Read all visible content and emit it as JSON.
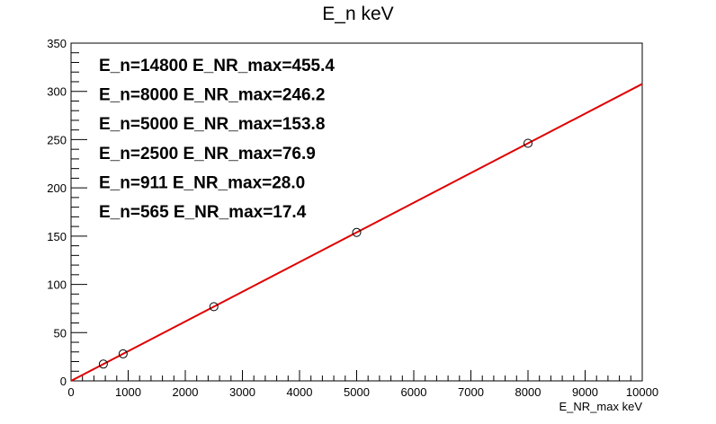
{
  "chart_data": {
    "type": "scatter",
    "title": "E_n keV",
    "xlabel": "E_NR_max keV",
    "ylabel": "",
    "xlim": [
      0,
      10000
    ],
    "ylim": [
      0,
      350
    ],
    "xticks": [
      0,
      1000,
      2000,
      3000,
      4000,
      5000,
      6000,
      7000,
      8000,
      9000,
      10000
    ],
    "yticks": [
      0,
      50,
      100,
      150,
      200,
      250,
      300,
      350
    ],
    "grid": false,
    "points": [
      {
        "x": 565,
        "y": 17.4
      },
      {
        "x": 911,
        "y": 28.0
      },
      {
        "x": 2500,
        "y": 76.9
      },
      {
        "x": 5000,
        "y": 153.8
      },
      {
        "x": 8000,
        "y": 246.2
      }
    ],
    "fit_line": {
      "color": "#e00000",
      "x0": 0,
      "y0": 0,
      "x1": 10000,
      "y1": 307.7
    },
    "marker_color": "#000000",
    "annotations": [
      "E_n=14800  E_NR_max=455.4",
      "E_n=8000  E_NR_max=246.2",
      "E_n=5000  E_NR_max=153.8",
      "E_n=2500  E_NR_max=76.9",
      "E_n=911  E_NR_max=28.0",
      "E_n=565  E_NR_max=17.4"
    ]
  }
}
